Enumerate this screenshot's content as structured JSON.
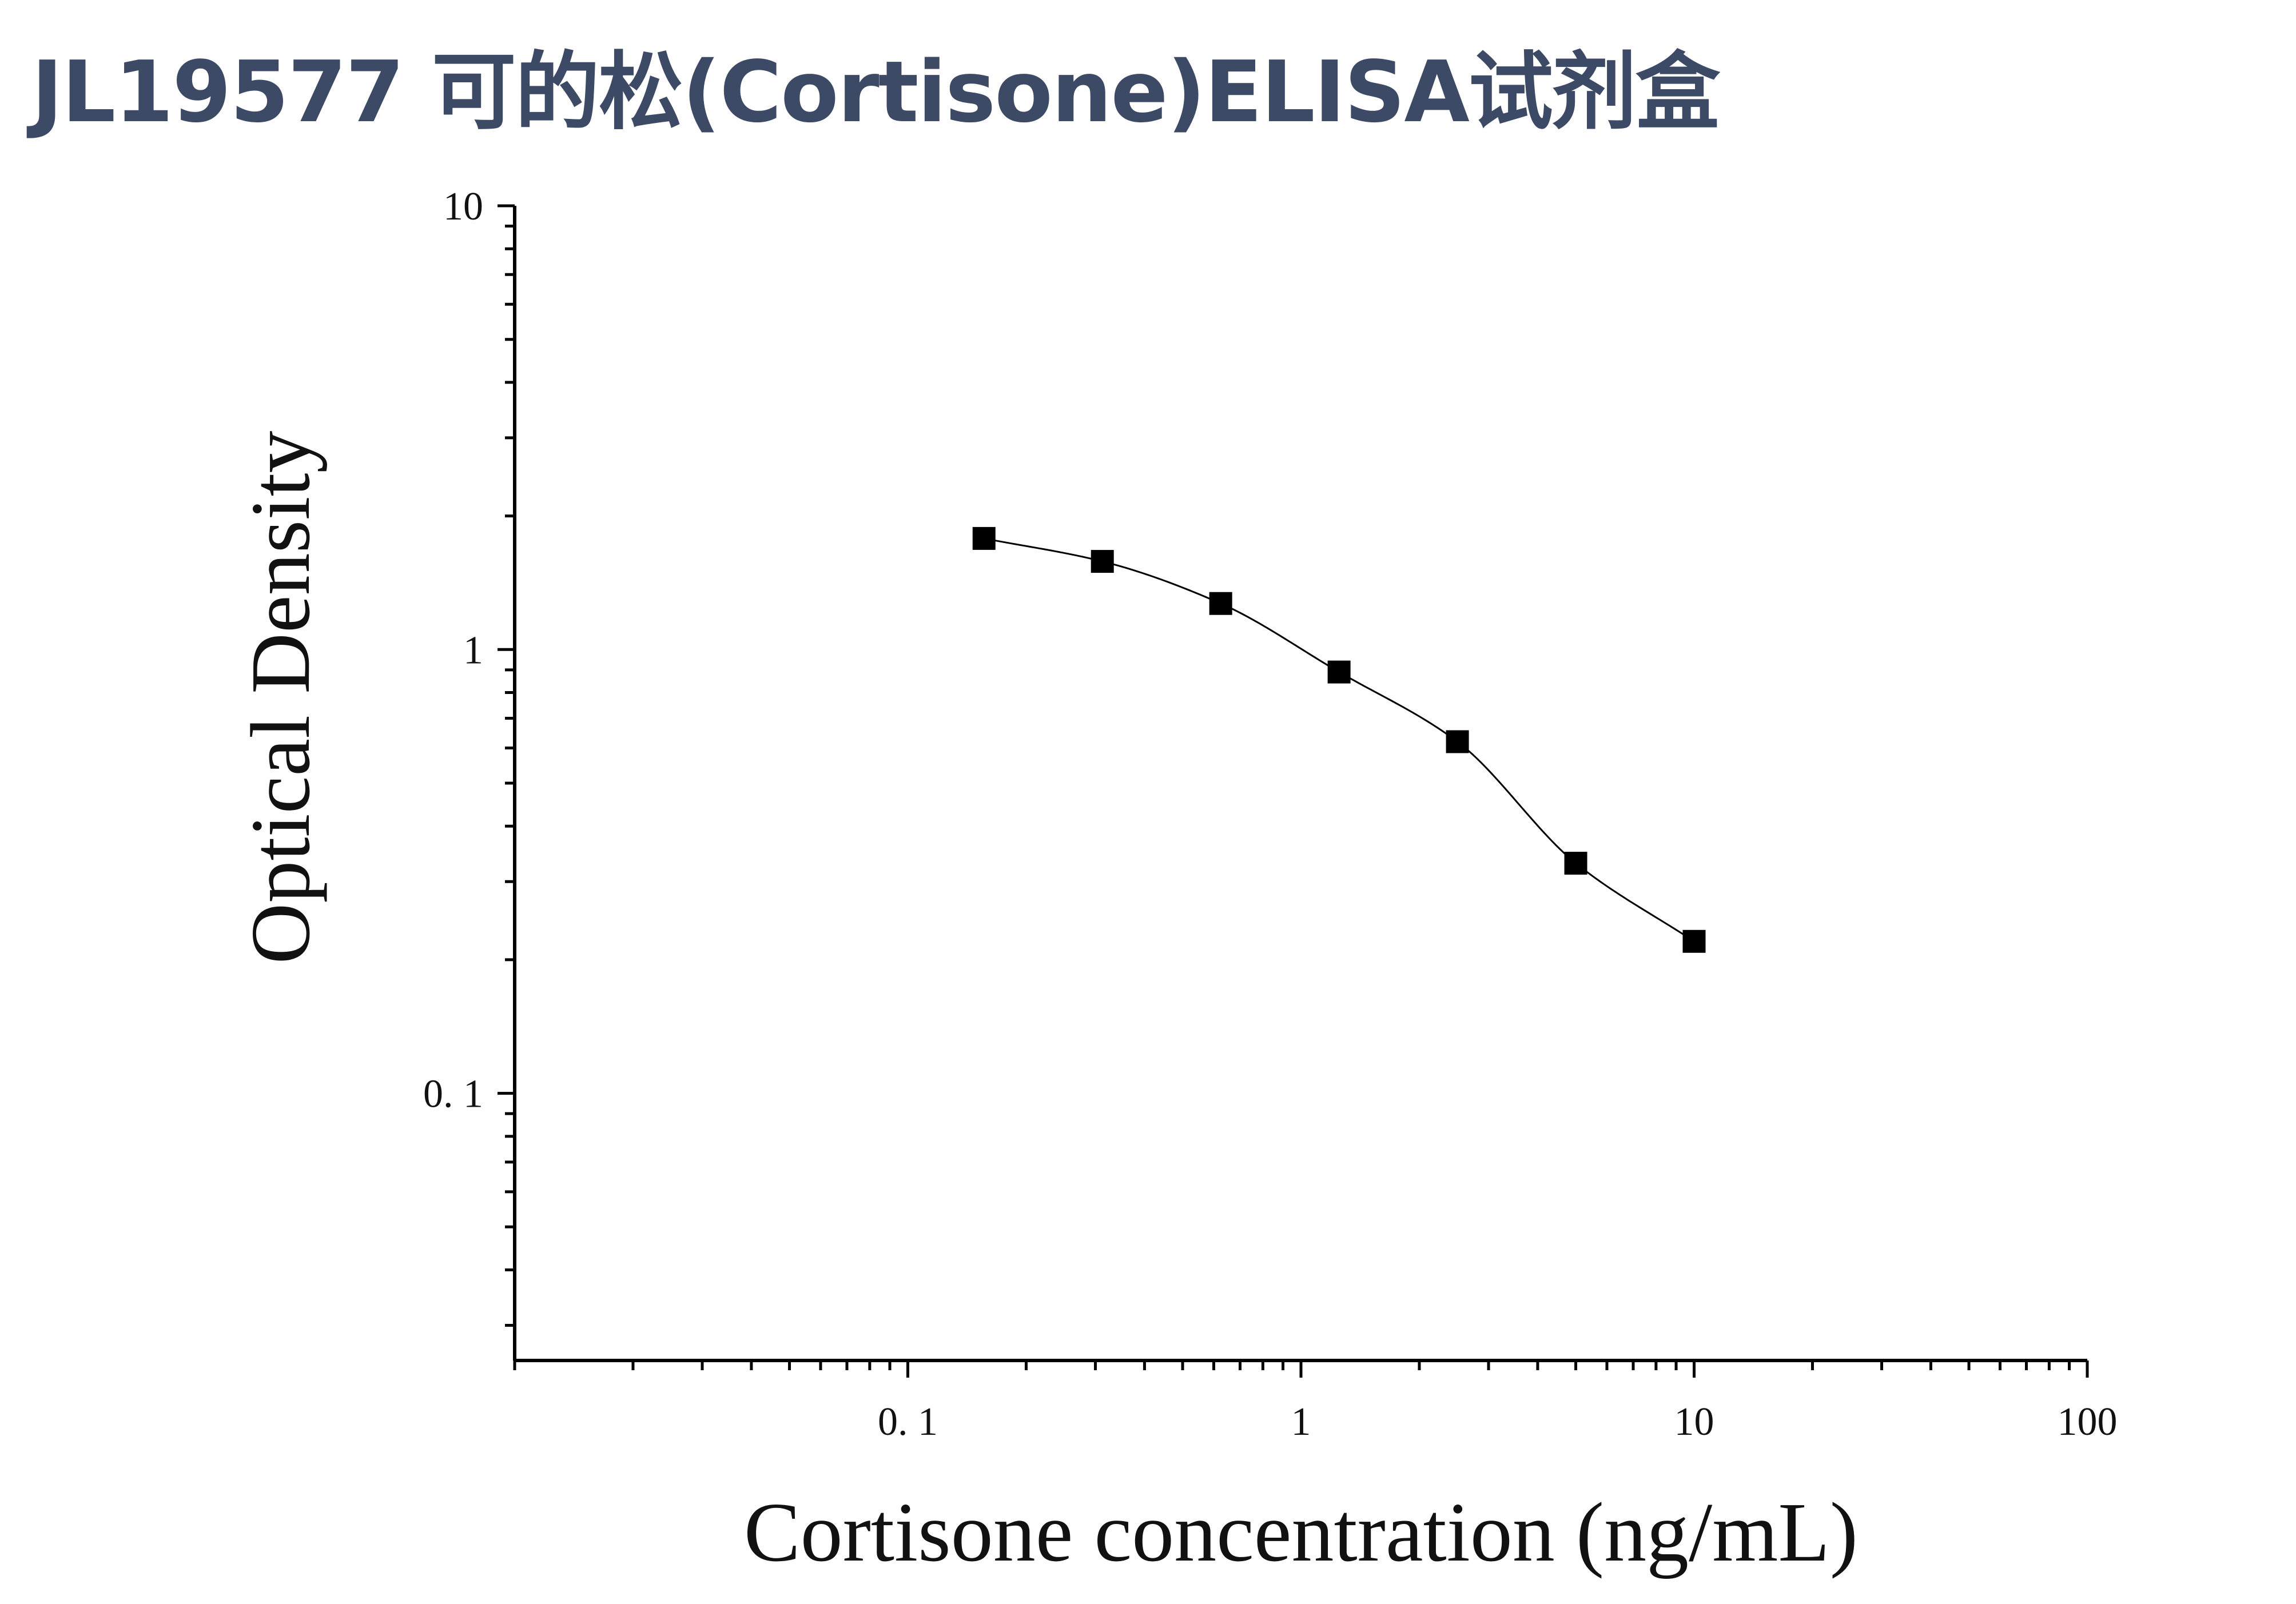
{
  "title": "JL19577 可的松(Cortisone)ELISA试剂盒",
  "chart_data": {
    "type": "scatter",
    "xlabel": "Cortisone concentration (ng/mL)",
    "ylabel": "Optical Density",
    "x_scale": "log",
    "y_scale": "log",
    "xlim": [
      0.01,
      100
    ],
    "ylim": [
      0.025,
      10
    ],
    "x_ticks": [
      {
        "value": 0.1,
        "label": "0. 1"
      },
      {
        "value": 1,
        "label": "1"
      },
      {
        "value": 10,
        "label": "10"
      },
      {
        "value": 100,
        "label": "100"
      }
    ],
    "y_ticks": [
      {
        "value": 0.1,
        "label": "0. 1"
      },
      {
        "value": 1,
        "label": "1"
      },
      {
        "value": 10,
        "label": "10"
      }
    ],
    "grid": false,
    "marker": "square",
    "color": "#000000",
    "series": [
      {
        "x": [
          0.15625,
          0.3125,
          0.625,
          1.25,
          2.5,
          5,
          10
        ],
        "y": [
          1.78,
          1.58,
          1.27,
          0.89,
          0.62,
          0.33,
          0.22
        ]
      }
    ],
    "fit_curve": true
  }
}
